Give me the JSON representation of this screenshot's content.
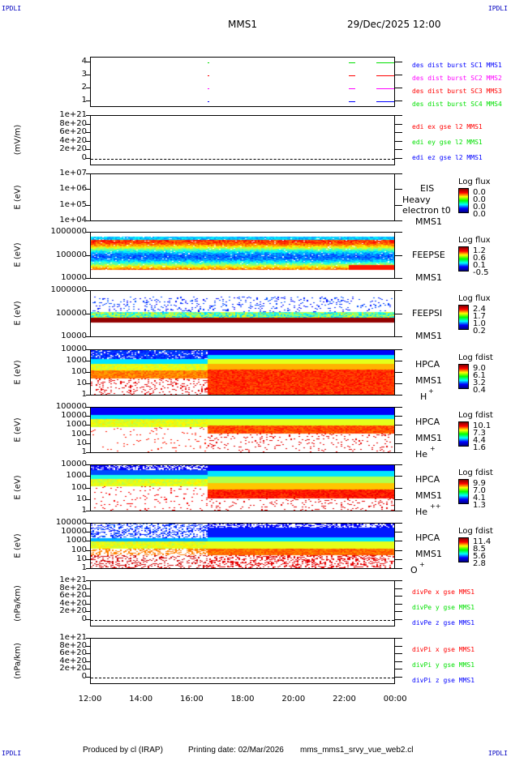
{
  "corners": {
    "tl": "IPDLI",
    "tr": "IPDLI",
    "bl": "IPDLI",
    "br": "IPDLI"
  },
  "header": {
    "mission": "MMS1",
    "date": "29/Dec/2025 12:00"
  },
  "footer": {
    "produced": "Produced by cl (IRAP)",
    "printing": "Printing date: 02/Mar/2026",
    "file": "mms_mms1_srvy_vue_web2.cl"
  },
  "colors": {
    "blue": "#0000ff",
    "magenta": "#ff00ff",
    "red": "#ff0000",
    "green": "#00e000"
  },
  "chart_data": {
    "type": "heatmap",
    "x_ticks": [
      "12:00",
      "14:00",
      "16:00",
      "18:00",
      "20:00",
      "22:00",
      "00:00"
    ],
    "panels": [
      {
        "id": "burst",
        "ylabel": "",
        "yticks": [
          "4",
          "3",
          "2",
          "1"
        ],
        "legend": [
          "des dist burst SC1 MMS1",
          "des dist burst SC2 MMS2",
          "des dist burst SC3 MMS3",
          "des dist burst SC4 MMS4"
        ]
      },
      {
        "id": "edi",
        "ylabel": "(mV/m)",
        "yticks": [
          "1e+21",
          "8e+20",
          "6e+20",
          "4e+20",
          "2e+20",
          "0"
        ],
        "legend": [
          "edi ex gse l2 MMS1",
          "edi ey gse l2 MMS1",
          "edi ez gse l2 MMS1"
        ]
      },
      {
        "id": "eis",
        "ylabel": "E (eV)",
        "yticks": [
          "1e+07",
          "1e+06",
          "1e+05",
          "1e+04"
        ],
        "labels": [
          "EIS",
          "Heavy electron t0",
          "MMS1"
        ],
        "cbar_title": "Log flux",
        "cbar": [
          "0.0",
          "0.0",
          "0.0",
          "0.0"
        ]
      },
      {
        "id": "feepse",
        "ylabel": "E (eV)",
        "yticks": [
          "1000000",
          "100000",
          "10000"
        ],
        "labels": [
          "FEEPSE",
          "MMS1"
        ],
        "cbar_title": "Log flux",
        "cbar": [
          "1.2",
          "0.6",
          "0.1",
          "-0.5"
        ]
      },
      {
        "id": "feepsi",
        "ylabel": "E (eV)",
        "yticks": [
          "1000000",
          "100000",
          "10000"
        ],
        "labels": [
          "FEEPSI",
          "MMS1"
        ],
        "cbar_title": "Log flux",
        "cbar": [
          "2.4",
          "1.7",
          "1.0",
          "0.2"
        ]
      },
      {
        "id": "hpca_h",
        "ylabel": "E (eV)",
        "yticks": [
          "10000",
          "1000",
          "100",
          "10",
          "1"
        ],
        "labels": [
          "HPCA",
          "MMS1",
          "H",
          "+"
        ],
        "cbar_title": "Log fdist",
        "cbar": [
          "9.0",
          "6.1",
          "3.2",
          "0.4"
        ]
      },
      {
        "id": "hpca_he",
        "ylabel": "E (eV)",
        "yticks": [
          "100000",
          "10000",
          "1000",
          "100",
          "10",
          "1"
        ],
        "labels": [
          "HPCA",
          "MMS1",
          "He",
          "+"
        ],
        "cbar_title": "Log fdist",
        "cbar": [
          "10.1",
          "7.3",
          "4.4",
          "1.6"
        ]
      },
      {
        "id": "hpca_hepp",
        "ylabel": "E (eV)",
        "yticks": [
          "10000",
          "1000",
          "100",
          "10",
          "1"
        ],
        "labels": [
          "HPCA",
          "MMS1",
          "He",
          "++"
        ],
        "cbar_title": "Log fdist",
        "cbar": [
          "9.9",
          "7.0",
          "4.1",
          "1.3"
        ]
      },
      {
        "id": "hpca_o",
        "ylabel": "E (eV)",
        "yticks": [
          "100000",
          "10000",
          "1000",
          "100",
          "10",
          "1"
        ],
        "labels": [
          "HPCA",
          "MMS1",
          "O",
          "+"
        ],
        "cbar_title": "Log fdist",
        "cbar": [
          "11.4",
          "8.5",
          "5.6",
          "2.8"
        ]
      },
      {
        "id": "divpe",
        "ylabel": "(nPa/km)",
        "yticks": [
          "1e+21",
          "8e+20",
          "6e+20",
          "4e+20",
          "2e+20",
          "0"
        ],
        "legend": [
          "divPe x gse MMS1",
          "divPe y gse MMS1",
          "divPe z gse MMS1"
        ]
      },
      {
        "id": "divpi",
        "ylabel": "(nPa/km)",
        "yticks": [
          "1e+21",
          "8e+20",
          "6e+20",
          "4e+20",
          "2e+20",
          "0"
        ],
        "legend": [
          "divPi x gse MMS1",
          "divPi y gse MMS1",
          "divPi z gse MMS1"
        ]
      }
    ]
  }
}
